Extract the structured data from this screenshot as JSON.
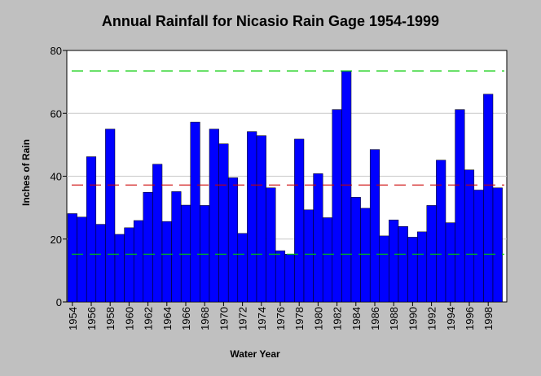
{
  "chart_data": {
    "type": "bar",
    "title": "Annual Rainfall for Nicasio Rain Gage 1954-1999",
    "xlabel": "Water Year",
    "ylabel": "Inches of Rain",
    "ylim": [
      0,
      80
    ],
    "yticks": [
      0,
      20,
      40,
      60,
      80
    ],
    "xtick_labels": [
      "1954",
      "1956",
      "1958",
      "1960",
      "1962",
      "1964",
      "1966",
      "1968",
      "1970",
      "1972",
      "1974",
      "1976",
      "1978",
      "1980",
      "1982",
      "1984",
      "1986",
      "1988",
      "1990",
      "1992",
      "1994",
      "1996",
      "1998"
    ],
    "x": [
      1954,
      1955,
      1956,
      1957,
      1958,
      1959,
      1960,
      1961,
      1962,
      1963,
      1964,
      1965,
      1966,
      1967,
      1968,
      1969,
      1970,
      1971,
      1972,
      1973,
      1974,
      1975,
      1976,
      1977,
      1978,
      1979,
      1980,
      1981,
      1982,
      1983,
      1984,
      1985,
      1986,
      1987,
      1988,
      1989,
      1990,
      1991,
      1992,
      1993,
      1994,
      1995,
      1996,
      1997,
      1998,
      1999
    ],
    "values": [
      28.1,
      27.0,
      46.2,
      24.7,
      55.0,
      21.5,
      23.6,
      25.9,
      34.9,
      43.8,
      25.6,
      35.1,
      30.8,
      57.2,
      30.7,
      55.0,
      50.3,
      39.5,
      21.8,
      54.2,
      52.9,
      36.3,
      16.3,
      15.2,
      51.8,
      29.3,
      40.8,
      26.8,
      61.2,
      73.5,
      33.3,
      29.8,
      48.5,
      21.0,
      26.1,
      24.0,
      20.6,
      22.3,
      30.7,
      45.1,
      25.2,
      61.2,
      42.0,
      35.6,
      66.1,
      36.3
    ],
    "bar_color": "#0000ff",
    "reference_lines": [
      {
        "value": 73.5,
        "color": "#00cc00"
      },
      {
        "value": 37.2,
        "color": "#cc0000"
      },
      {
        "value": 15.2,
        "color": "#00cc00"
      }
    ],
    "grid": "horizontal",
    "legend": "none"
  }
}
